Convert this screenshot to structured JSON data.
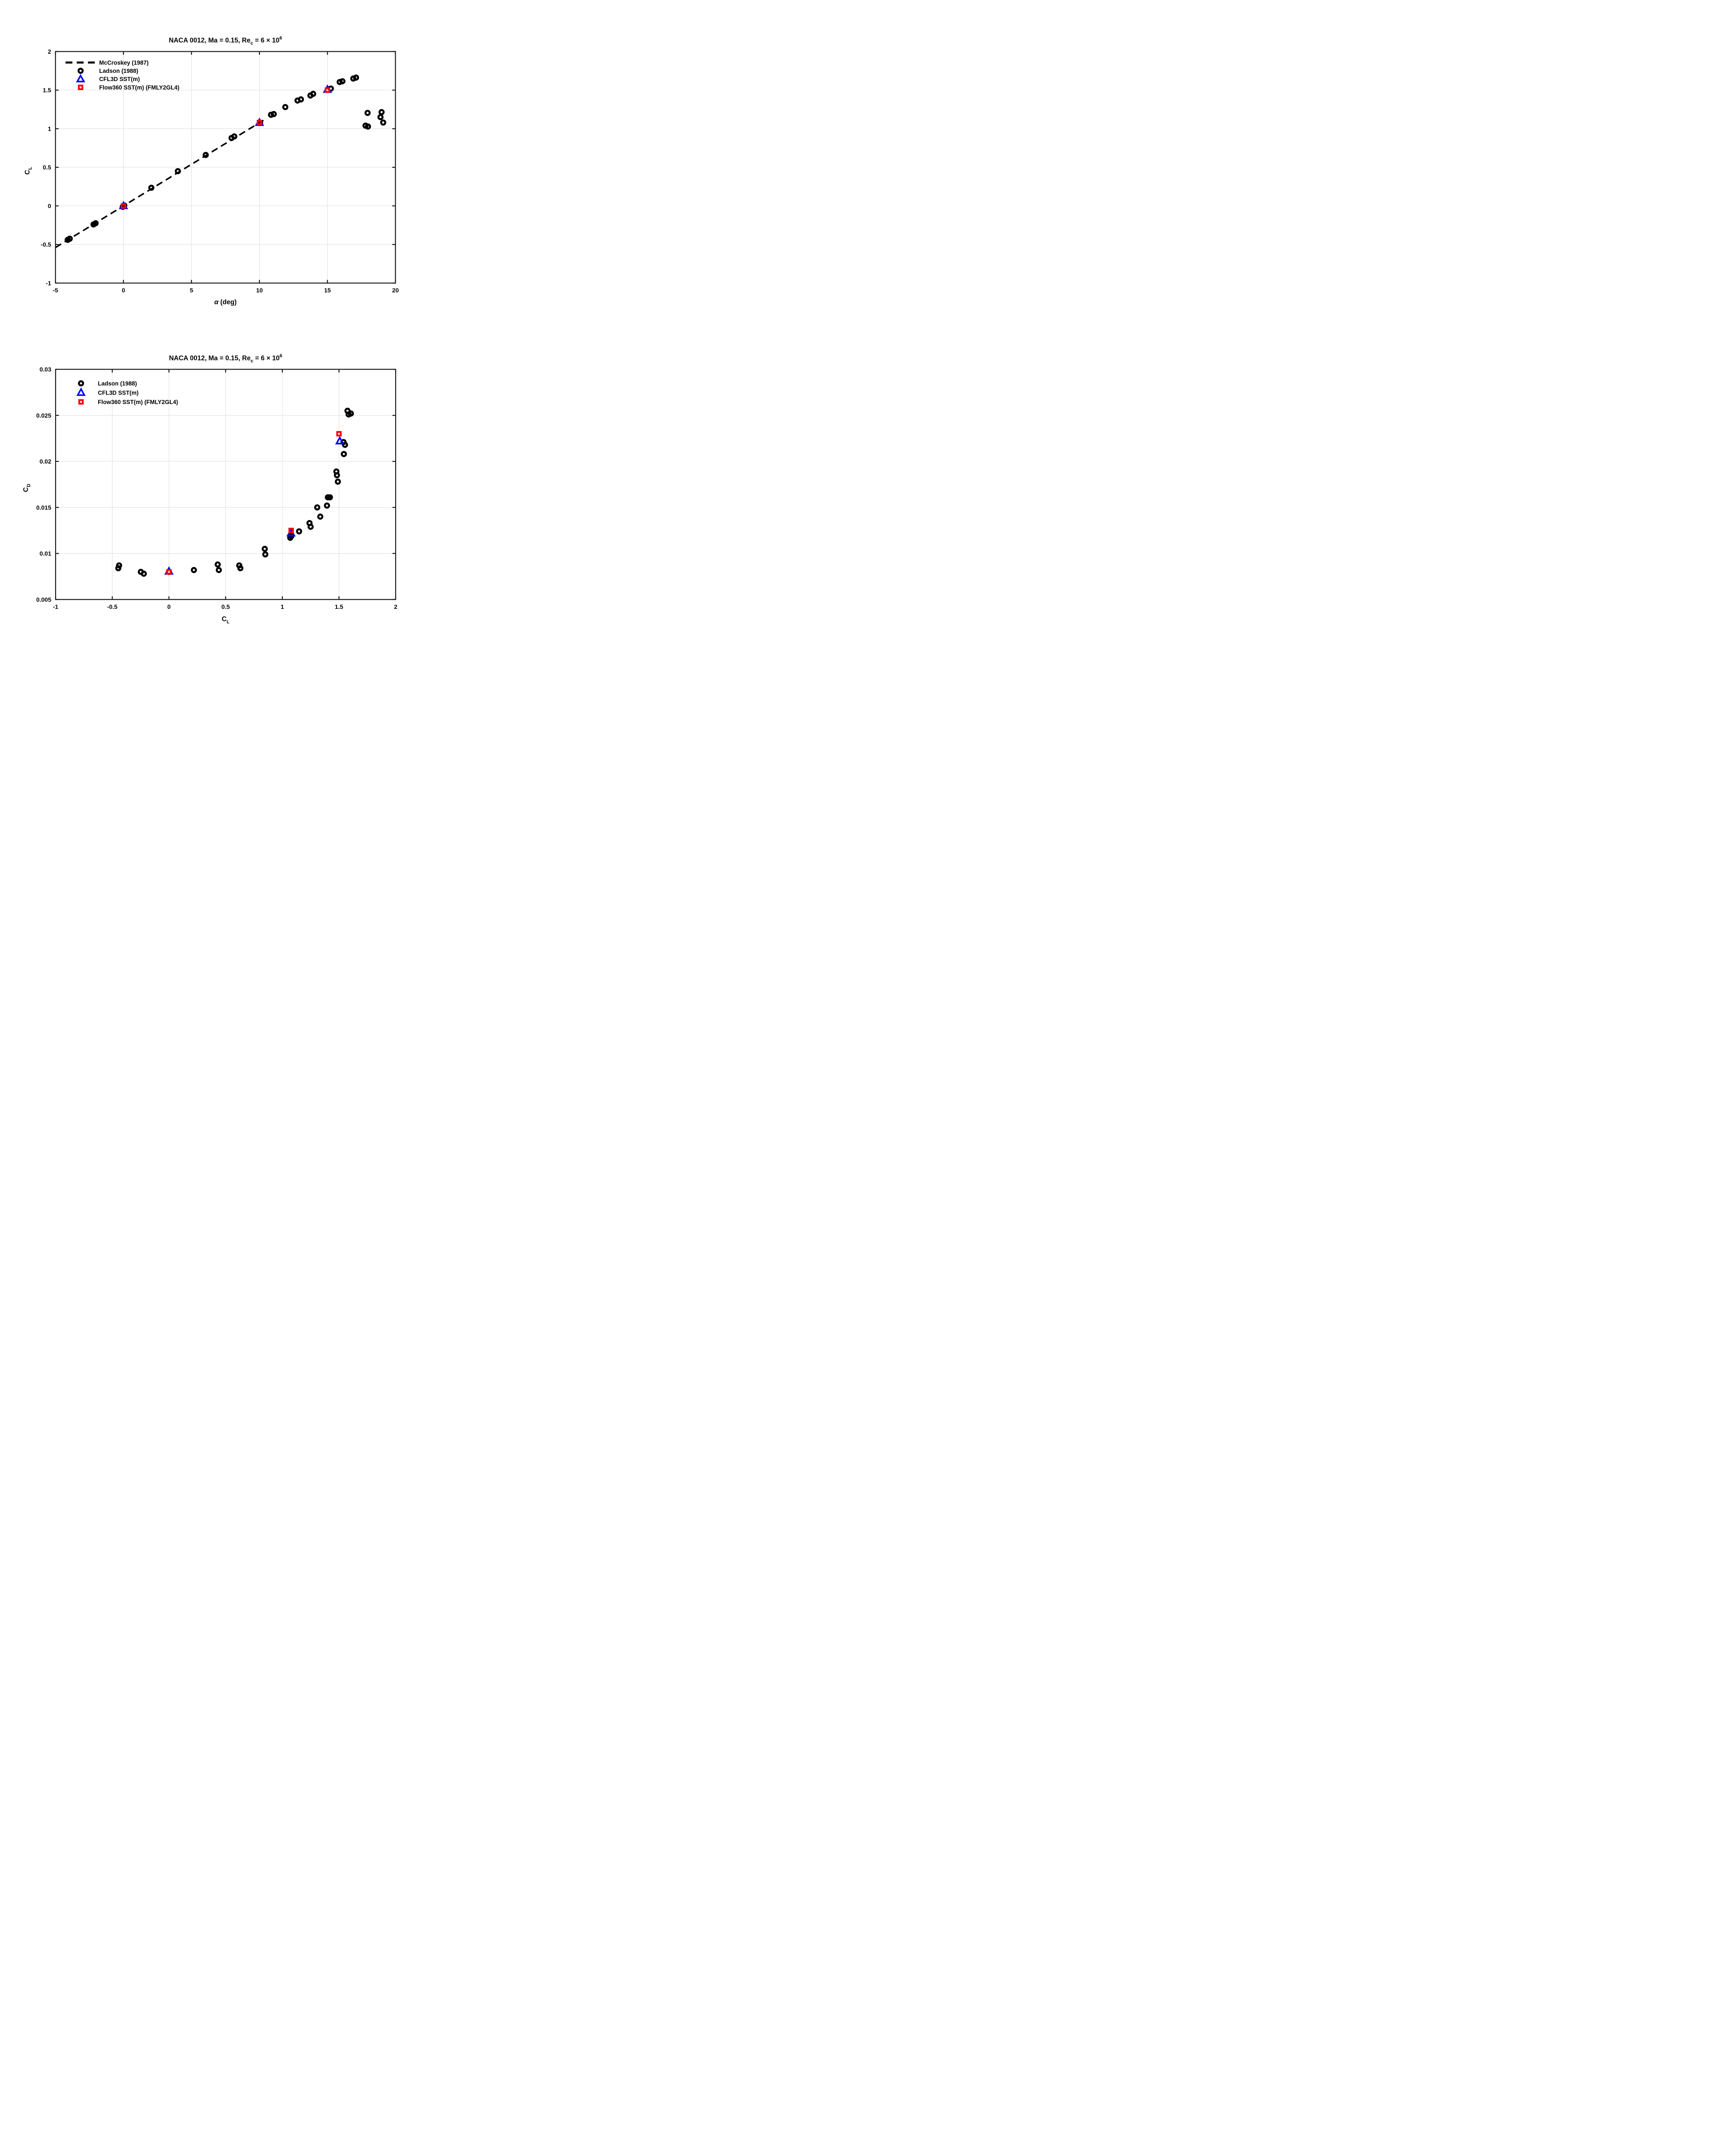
{
  "figure": {
    "background": "#FFFFFF",
    "colors": {
      "black": "#000000",
      "blue": "#0000FF",
      "red": "#FF0000",
      "grid": "#DCDCDC",
      "axis": "#141414"
    }
  },
  "chart_data": [
    {
      "type": "scatter",
      "title": "NACA 0012, Ma = 0.15, Re_c = 6 × 10^6",
      "title_parts": [
        {
          "t": "NACA 0012, Ma = 0.15, Re"
        },
        {
          "t": "c",
          "sub": true
        },
        {
          "t": " = 6 × 10"
        },
        {
          "t": "6",
          "sup": true
        }
      ],
      "xlabel": "α (deg)",
      "xlabel_parts": [
        {
          "t": "α",
          "italic": true
        },
        {
          "t": " (deg)"
        }
      ],
      "ylabel": "C_L",
      "ylabel_parts": [
        {
          "t": "C"
        },
        {
          "t": "L",
          "sub": true
        }
      ],
      "xlim": [
        -5,
        20
      ],
      "ylim": [
        -1,
        2
      ],
      "grid": true,
      "xticks": [
        {
          "v": -5,
          "label": "-5"
        },
        {
          "v": 0,
          "label": "0"
        },
        {
          "v": 5,
          "label": "5"
        },
        {
          "v": 10,
          "label": "10"
        },
        {
          "v": 15,
          "label": "15"
        },
        {
          "v": 20,
          "label": "20"
        }
      ],
      "yticks": [
        {
          "v": -1,
          "label": "-1"
        },
        {
          "v": -0.5,
          "label": "-0.5"
        },
        {
          "v": 0,
          "label": "0"
        },
        {
          "v": 0.5,
          "label": "0.5"
        },
        {
          "v": 1,
          "label": "1"
        },
        {
          "v": 1.5,
          "label": "1.5"
        },
        {
          "v": 2,
          "label": "2"
        }
      ],
      "legend_position": "northwest",
      "legend": [
        {
          "label": "McCroskey (1987)",
          "marker": "dash",
          "color": "#000000"
        },
        {
          "label": "Ladson (1988)",
          "marker": "circle",
          "color": "#000000"
        },
        {
          "label": "CFL3D SST(m)",
          "marker": "triangle",
          "color": "#0000FF"
        },
        {
          "label": "Flow360 SST(m) (FMLY2GL4)",
          "marker": "square",
          "color": "#FF0000"
        }
      ],
      "series": [
        {
          "name": "McCroskey (1987)",
          "type": "line",
          "dashed": true,
          "color": "#000000",
          "points": [
            [
              -5,
              -0.539
            ],
            [
              10.45,
              1.126
            ]
          ]
        },
        {
          "name": "Ladson (1988)",
          "type": "scatter",
          "marker": "circle",
          "color": "#000000",
          "points": [
            [
              -4.1,
              -0.44
            ],
            [
              -3.95,
              -0.425
            ],
            [
              -2.2,
              -0.24
            ],
            [
              -2.05,
              -0.225
            ],
            [
              -0.05,
              -0.012
            ],
            [
              0.06,
              0.006
            ],
            [
              2.05,
              0.235
            ],
            [
              4.0,
              0.45
            ],
            [
              6.05,
              0.66
            ],
            [
              7.95,
              0.88
            ],
            [
              8.15,
              0.9
            ],
            [
              10.05,
              1.075
            ],
            [
              10.85,
              1.18
            ],
            [
              11.05,
              1.19
            ],
            [
              11.9,
              1.28
            ],
            [
              12.8,
              1.365
            ],
            [
              13.05,
              1.38
            ],
            [
              13.75,
              1.43
            ],
            [
              13.95,
              1.452
            ],
            [
              15.25,
              1.52
            ],
            [
              15.9,
              1.605
            ],
            [
              16.1,
              1.615
            ],
            [
              16.9,
              1.65
            ],
            [
              17.1,
              1.662
            ],
            [
              17.95,
              1.205
            ],
            [
              17.8,
              1.04
            ],
            [
              17.98,
              1.028
            ],
            [
              18.9,
              1.15
            ],
            [
              18.98,
              1.215
            ],
            [
              19.1,
              1.08
            ]
          ]
        },
        {
          "name": "CFL3D SST(m)",
          "type": "scatter",
          "marker": "triangle",
          "color": "#0000FF",
          "points": [
            [
              0,
              0
            ],
            [
              10,
              1.078
            ],
            [
              15,
              1.507
            ]
          ]
        },
        {
          "name": "Flow360 SST(m) (FMLY2GL4)",
          "type": "scatter",
          "marker": "square",
          "color": "#FF0000",
          "points": [
            [
              0,
              0
            ],
            [
              10,
              1.08
            ],
            [
              15,
              1.5
            ]
          ]
        }
      ]
    },
    {
      "type": "scatter",
      "title": "NACA 0012, Ma = 0.15, Re_c = 6 × 10^6",
      "title_parts": [
        {
          "t": "NACA 0012, Ma = 0.15, Re"
        },
        {
          "t": "c",
          "sub": true
        },
        {
          "t": " = 6 × 10"
        },
        {
          "t": "6",
          "sup": true
        }
      ],
      "xlabel": "C_L",
      "xlabel_parts": [
        {
          "t": "C"
        },
        {
          "t": "L",
          "sub": true
        }
      ],
      "ylabel": "C_D",
      "ylabel_parts": [
        {
          "t": "C"
        },
        {
          "t": "D",
          "sub": true
        }
      ],
      "xlim": [
        -1,
        2
      ],
      "ylim": [
        0.005,
        0.03
      ],
      "grid": true,
      "xticks": [
        {
          "v": -1,
          "label": "-1"
        },
        {
          "v": -0.5,
          "label": "-0.5"
        },
        {
          "v": 0,
          "label": "0"
        },
        {
          "v": 0.5,
          "label": "0.5"
        },
        {
          "v": 1,
          "label": "1"
        },
        {
          "v": 1.5,
          "label": "1.5"
        },
        {
          "v": 2,
          "label": "2"
        }
      ],
      "yticks": [
        {
          "v": 0.005,
          "label": "0.005"
        },
        {
          "v": 0.01,
          "label": "0.01"
        },
        {
          "v": 0.015,
          "label": "0.015"
        },
        {
          "v": 0.02,
          "label": "0.02"
        },
        {
          "v": 0.025,
          "label": "0.025"
        },
        {
          "v": 0.03,
          "label": "0.03"
        }
      ],
      "legend_position": "northwest",
      "legend": [
        {
          "label": "Ladson (1988)",
          "marker": "circle",
          "color": "#000000"
        },
        {
          "label": "CFL3D SST(m)",
          "marker": "triangle",
          "color": "#0000FF"
        },
        {
          "label": "Flow360 SST(m) (FMLY2GL4)",
          "marker": "square",
          "color": "#FF0000"
        }
      ],
      "series": [
        {
          "name": "Ladson (1988)",
          "type": "scatter",
          "marker": "circle",
          "color": "#000000",
          "points": [
            [
              -0.447,
              0.0084
            ],
            [
              -0.44,
              0.0087
            ],
            [
              -0.248,
              0.008
            ],
            [
              -0.222,
              0.0078
            ],
            [
              0.0,
              0.008
            ],
            [
              0.22,
              0.0082
            ],
            [
              0.43,
              0.0088
            ],
            [
              0.44,
              0.0082
            ],
            [
              0.62,
              0.0087
            ],
            [
              0.63,
              0.0084
            ],
            [
              0.845,
              0.0105
            ],
            [
              0.85,
              0.0099
            ],
            [
              1.07,
              0.0117
            ],
            [
              1.08,
              0.0119
            ],
            [
              1.148,
              0.0124
            ],
            [
              1.24,
              0.0133
            ],
            [
              1.25,
              0.0129
            ],
            [
              1.308,
              0.015
            ],
            [
              1.335,
              0.014
            ],
            [
              1.394,
              0.0152
            ],
            [
              1.402,
              0.0161
            ],
            [
              1.42,
              0.0161
            ],
            [
              1.477,
              0.0189
            ],
            [
              1.482,
              0.0185
            ],
            [
              1.49,
              0.0178
            ],
            [
              1.54,
              0.0221
            ],
            [
              1.553,
              0.0218
            ],
            [
              1.543,
              0.0208
            ],
            [
              1.575,
              0.0255
            ],
            [
              1.585,
              0.0251
            ],
            [
              1.605,
              0.0252
            ]
          ]
        },
        {
          "name": "CFL3D SST(m)",
          "type": "scatter",
          "marker": "triangle",
          "color": "#0000FF",
          "points": [
            [
              0,
              0.00805
            ],
            [
              1.077,
              0.0122
            ],
            [
              1.507,
              0.0222
            ]
          ]
        },
        {
          "name": "Flow360 SST(m) (FMLY2GL4)",
          "type": "scatter",
          "marker": "square",
          "color": "#FF0000",
          "points": [
            [
              0,
              0.008
            ],
            [
              1.078,
              0.0125
            ],
            [
              1.5,
              0.023
            ]
          ]
        }
      ]
    }
  ]
}
